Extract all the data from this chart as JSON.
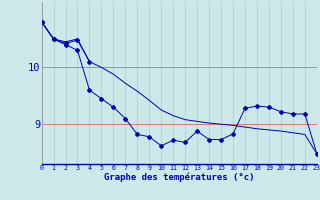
{
  "xlabel": "Graphe des températures (°c)",
  "background_color": "#cce8e8",
  "grid_color_v": "#b0c8c8",
  "grid_color_h": "#e05050",
  "line_color": "#0000bb",
  "hours": [
    0,
    1,
    2,
    3,
    4,
    5,
    6,
    7,
    8,
    9,
    10,
    11,
    12,
    13,
    14,
    15,
    16,
    17,
    18,
    19,
    20,
    21,
    22,
    23
  ],
  "line_main": [
    10.8,
    10.5,
    10.4,
    10.3,
    9.6,
    9.45,
    9.3,
    9.1,
    8.82,
    8.78,
    8.62,
    8.72,
    8.68,
    8.88,
    8.73,
    8.73,
    8.83,
    9.28,
    9.32,
    9.3,
    9.22,
    9.18,
    9.18,
    8.48
  ],
  "line_upper": [
    10.8,
    10.5,
    10.45,
    10.5,
    10.1,
    10.0,
    9.88,
    9.72,
    9.58,
    9.42,
    9.25,
    9.15,
    9.08,
    9.05,
    9.02,
    9.0,
    8.98,
    8.95,
    8.92,
    8.9,
    8.88,
    8.85,
    8.82,
    8.48
  ],
  "line_short": [
    10.8,
    10.5,
    10.42,
    10.48,
    10.1,
    null,
    null,
    null,
    null,
    null,
    null,
    null,
    null,
    null,
    null,
    null,
    null,
    null,
    null,
    null,
    null,
    null,
    null,
    null
  ],
  "ylim": [
    8.3,
    11.15
  ],
  "ytick_positions": [
    9.0,
    10.0
  ],
  "ytick_labels": [
    "9",
    "10"
  ],
  "xlim": [
    0,
    23
  ],
  "xtick_labels": [
    "0",
    "1",
    "2",
    "3",
    "4",
    "5",
    "6",
    "7",
    "8",
    "9",
    "10",
    "11",
    "12",
    "13",
    "14",
    "15",
    "16",
    "17",
    "18",
    "19",
    "20",
    "21",
    "22",
    "23"
  ]
}
